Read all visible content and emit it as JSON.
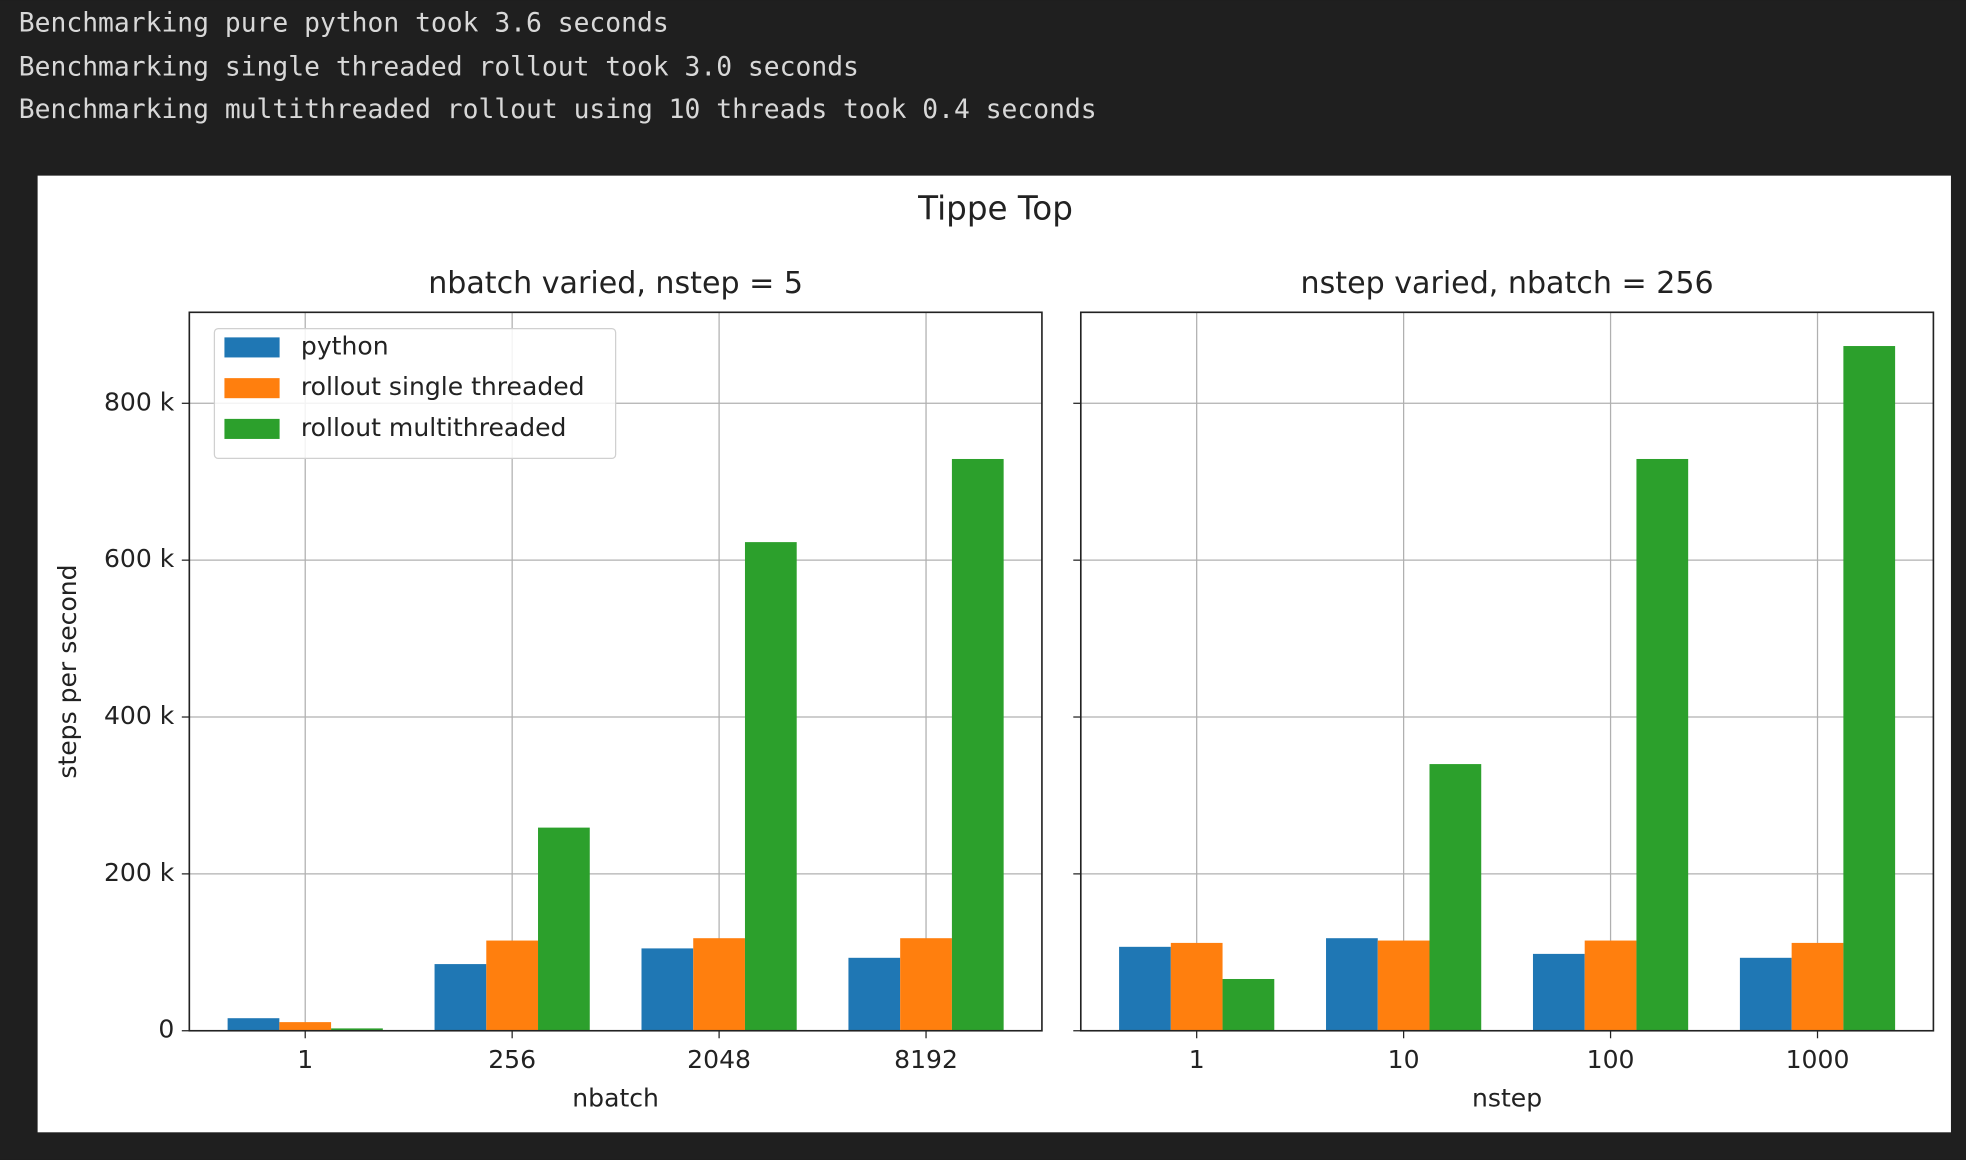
{
  "console": {
    "lines": [
      "Benchmarking pure python took 3.6 seconds",
      "Benchmarking single threaded rollout took 3.0 seconds",
      "Benchmarking multithreaded rollout using 10 threads took 0.4 seconds"
    ]
  },
  "figure": {
    "title": "Tippe Top"
  },
  "chart_data": [
    {
      "type": "bar",
      "title": "nbatch varied, nstep = 5",
      "x_label": "nbatch",
      "y_label": "steps per second",
      "categories": [
        "1",
        "256",
        "2048",
        "8192"
      ],
      "series": [
        {
          "name": "python",
          "color": "#1f77b4",
          "values": [
            16000,
            85000,
            105000,
            93000
          ]
        },
        {
          "name": "rollout single threaded",
          "color": "#ff7f0e",
          "values": [
            11000,
            115000,
            118000,
            118000
          ]
        },
        {
          "name": "rollout multithreaded",
          "color": "#2ca02c",
          "values": [
            3000,
            259000,
            623000,
            729000
          ]
        }
      ],
      "ylim": [
        0,
        916000
      ],
      "yticks": [
        {
          "value": 0,
          "label": "0"
        },
        {
          "value": 200000,
          "label": "200 k"
        },
        {
          "value": 400000,
          "label": "400 k"
        },
        {
          "value": 600000,
          "label": "600 k"
        },
        {
          "value": 800000,
          "label": "800 k"
        }
      ],
      "ytick_labels": true,
      "grid": true,
      "legend": "upper left"
    },
    {
      "type": "bar",
      "title": "nstep varied, nbatch = 256",
      "x_label": "nstep",
      "categories": [
        "1",
        "10",
        "100",
        "1000"
      ],
      "series": [
        {
          "color": "#1f77b4",
          "values": [
            107000,
            118000,
            98000,
            93000
          ]
        },
        {
          "color": "#ff7f0e",
          "values": [
            112000,
            115000,
            115000,
            112000
          ]
        },
        {
          "color": "#2ca02c",
          "values": [
            66000,
            340000,
            729000,
            873000
          ]
        }
      ],
      "ylim": [
        0,
        916000
      ],
      "yticks": [
        0,
        200000,
        400000,
        600000,
        800000
      ],
      "ytick_labels": false,
      "grid": true
    }
  ]
}
